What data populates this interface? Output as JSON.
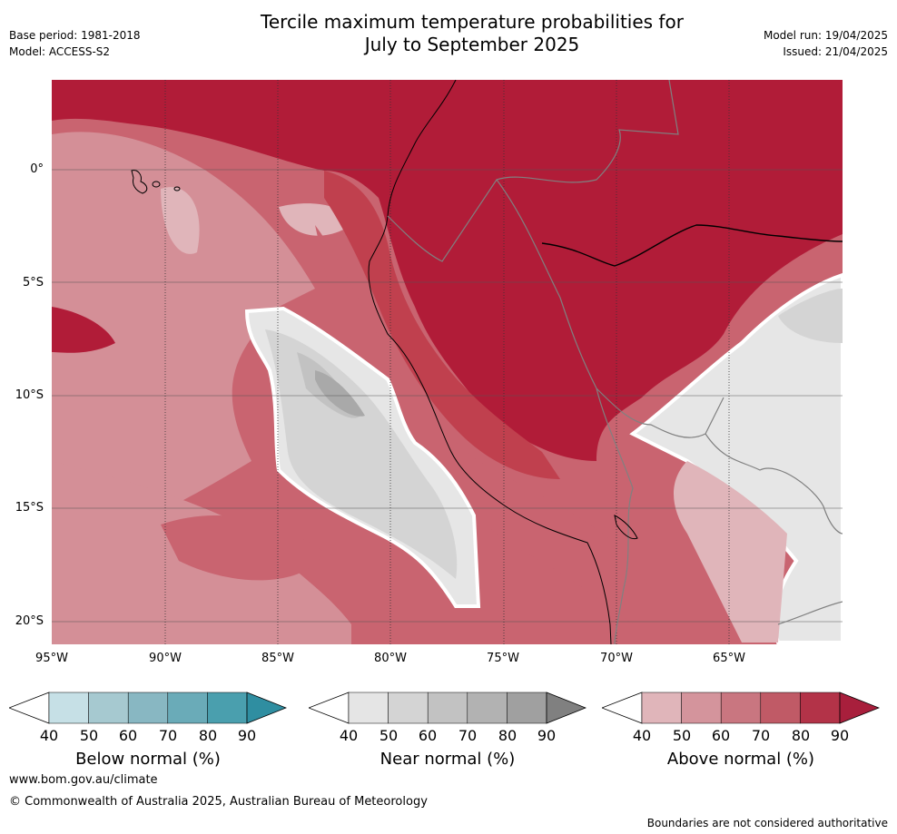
{
  "header": {
    "title_line1": "Tercile maximum temperature probabilities for",
    "title_line2": "July to September 2025",
    "base_period": "Base period: 1981-2018",
    "model": "Model: ACCESS-S2",
    "model_run": "Model run: 19/04/2025",
    "issued": "Issued: 21/04/2025"
  },
  "map": {
    "lat_labels": [
      "0°",
      "5°S",
      "10°S",
      "15°S",
      "20°S"
    ],
    "lon_labels": [
      "95°W",
      "90°W",
      "85°W",
      "80°W",
      "75°W",
      "70°W",
      "65°W"
    ],
    "colors": {
      "above_90": "#b11c38",
      "above_80": "#c0404e",
      "above_70": "#c96470",
      "above_60": "#d48f97",
      "above_50": "#e0b5ba",
      "near_50": "#e6e6e6",
      "near_60": "#d4d4d4",
      "near_70": "#c2c2c2",
      "near_80": "#a9a9a9"
    }
  },
  "colorbars": [
    {
      "title": "Below normal (%)",
      "ticks": [
        "40",
        "50",
        "60",
        "70",
        "80",
        "90"
      ],
      "colors": [
        "#ffffff",
        "#c6e0e6",
        "#a6c9d0",
        "#88b7c2",
        "#6aabb8",
        "#4a9fae",
        "#2f8ea1"
      ]
    },
    {
      "title": "Near normal (%)",
      "ticks": [
        "40",
        "50",
        "60",
        "70",
        "80",
        "90"
      ],
      "colors": [
        "#ffffff",
        "#e5e5e5",
        "#d4d4d4",
        "#c2c2c2",
        "#b2b2b2",
        "#a0a0a0",
        "#808080"
      ]
    },
    {
      "title": "Above normal (%)",
      "ticks": [
        "40",
        "50",
        "60",
        "70",
        "80",
        "90"
      ],
      "colors": [
        "#ffffff",
        "#e0b5ba",
        "#d4949c",
        "#c97680",
        "#c05a66",
        "#b33348",
        "#a81f3c"
      ]
    }
  ],
  "footer": {
    "url": "www.bom.gov.au/climate",
    "copyright": "© Commonwealth of Australia 2025, Australian Bureau of Meteorology",
    "disclaimer": "Boundaries are not considered authoritative"
  }
}
